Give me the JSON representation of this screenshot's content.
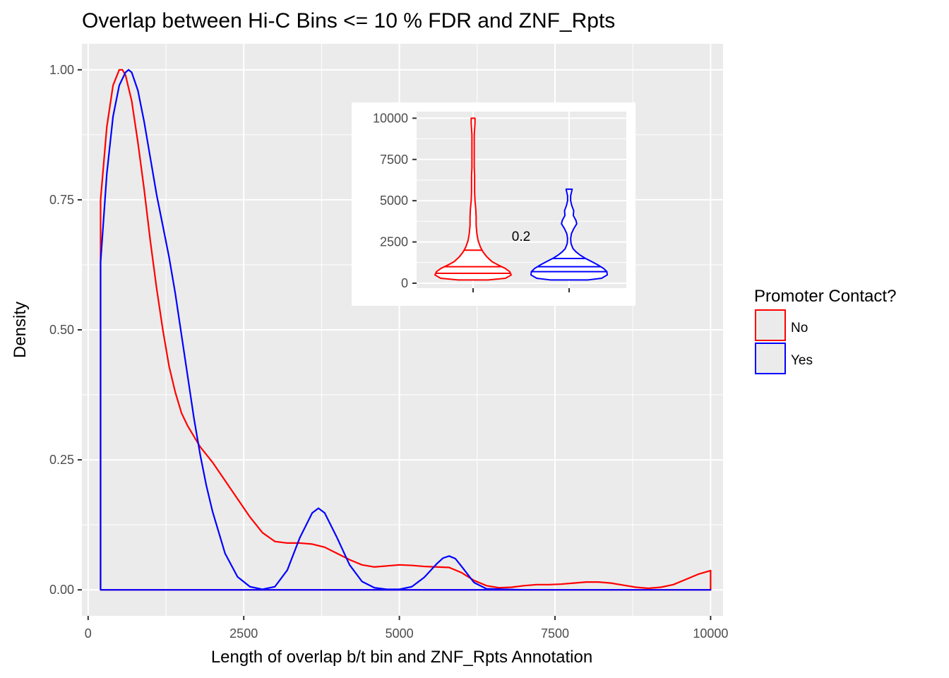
{
  "colors": {
    "No": "#ff0000",
    "Yes": "#0000ff",
    "panel": "#ebebeb",
    "grid": "#ffffff"
  },
  "chart_data": [
    {
      "type": "line",
      "title": "Overlap between Hi-C Bins <= 10 % FDR and ZNF_Rpts",
      "xlabel": "Length of overlap b/t bin and ZNF_Rpts Annotation",
      "ylabel": "Density",
      "xlim": [
        -100,
        10200
      ],
      "ylim": [
        -0.05,
        1.05
      ],
      "x_ticks": [
        0,
        2500,
        5000,
        7500,
        10000
      ],
      "x_tick_labels": [
        "0",
        "2500",
        "5000",
        "7500",
        "10000"
      ],
      "y_ticks": [
        0,
        0.25,
        0.5,
        0.75,
        1.0
      ],
      "y_tick_labels": [
        "0.00",
        "0.25",
        "0.50",
        "0.75",
        "1.00"
      ],
      "grid": true,
      "legend": {
        "title": "Promoter Contact?",
        "position": "right",
        "entries": [
          "No",
          "Yes"
        ]
      },
      "series": [
        {
          "name": "No",
          "color": "#ff0000",
          "x": [
            200,
            300,
            400,
            500,
            550,
            600,
            700,
            800,
            900,
            1000,
            1100,
            1200,
            1300,
            1400,
            1500,
            1600,
            1700,
            1800,
            1900,
            2000,
            2200,
            2400,
            2600,
            2800,
            3000,
            3200,
            3400,
            3600,
            3800,
            4000,
            4200,
            4400,
            4600,
            4800,
            5000,
            5200,
            5400,
            5600,
            5800,
            6000,
            6200,
            6400,
            6600,
            6800,
            7000,
            7200,
            7400,
            7600,
            7800,
            8000,
            8200,
            8400,
            8600,
            8800,
            9000,
            9200,
            9400,
            9600,
            9800,
            10000
          ],
          "y": [
            0.75,
            0.89,
            0.97,
            1.0,
            1.0,
            0.99,
            0.94,
            0.86,
            0.77,
            0.67,
            0.58,
            0.5,
            0.43,
            0.38,
            0.34,
            0.315,
            0.295,
            0.275,
            0.26,
            0.245,
            0.21,
            0.175,
            0.14,
            0.11,
            0.093,
            0.09,
            0.09,
            0.088,
            0.082,
            0.07,
            0.058,
            0.048,
            0.044,
            0.046,
            0.048,
            0.047,
            0.045,
            0.044,
            0.043,
            0.033,
            0.018,
            0.008,
            0.004,
            0.005,
            0.008,
            0.01,
            0.01,
            0.011,
            0.013,
            0.015,
            0.015,
            0.013,
            0.009,
            0.005,
            0.003,
            0.005,
            0.01,
            0.02,
            0.03,
            0.037
          ]
        },
        {
          "name": "Yes",
          "color": "#0000ff",
          "x": [
            200,
            300,
            400,
            500,
            600,
            650,
            700,
            800,
            900,
            1000,
            1100,
            1200,
            1300,
            1400,
            1500,
            1600,
            1700,
            1800,
            1900,
            2000,
            2200,
            2400,
            2600,
            2800,
            3000,
            3200,
            3400,
            3600,
            3700,
            3800,
            4000,
            4200,
            4400,
            4600,
            4800,
            5000,
            5200,
            5400,
            5600,
            5700,
            5800,
            5900,
            6000,
            6200,
            6400,
            7000,
            8000,
            9000,
            10000
          ],
          "y": [
            0.63,
            0.8,
            0.91,
            0.97,
            0.995,
            1.0,
            0.995,
            0.96,
            0.9,
            0.83,
            0.76,
            0.7,
            0.64,
            0.57,
            0.49,
            0.41,
            0.33,
            0.26,
            0.2,
            0.15,
            0.07,
            0.025,
            0.006,
            0.001,
            0.006,
            0.038,
            0.1,
            0.148,
            0.157,
            0.148,
            0.1,
            0.048,
            0.016,
            0.004,
            0.001,
            0.001,
            0.006,
            0.024,
            0.05,
            0.061,
            0.065,
            0.06,
            0.045,
            0.014,
            0.002,
            0.0,
            0.0,
            0.0,
            0.0
          ]
        }
      ]
    },
    {
      "type": "violin",
      "ylim": [
        -300,
        10400
      ],
      "y_ticks": [
        0,
        2500,
        5000,
        7500,
        10000
      ],
      "y_tick_labels": [
        "0",
        "2500",
        "5000",
        "7500",
        "10000"
      ],
      "annotation": "0.2",
      "groups": [
        {
          "name": "No",
          "color": "#ff0000",
          "quantiles": [
            600,
            1000,
            2000
          ],
          "min": 200,
          "max": 10000,
          "profile_y": [
            200,
            300,
            500,
            700,
            900,
            1100,
            1300,
            1600,
            1900,
            2200,
            2600,
            3000,
            3500,
            4000,
            4500,
            5000,
            5500,
            6000,
            6500,
            7000,
            8000,
            9000,
            9700,
            10000
          ],
          "profile_w": [
            0.4,
            0.85,
            1.0,
            0.96,
            0.84,
            0.66,
            0.5,
            0.36,
            0.26,
            0.19,
            0.13,
            0.1,
            0.08,
            0.08,
            0.07,
            0.05,
            0.04,
            0.04,
            0.04,
            0.03,
            0.03,
            0.03,
            0.05,
            0.05
          ]
        },
        {
          "name": "Yes",
          "color": "#0000ff",
          "quantiles": [
            700,
            1000,
            1500
          ],
          "min": 200,
          "max": 5700,
          "profile_y": [
            200,
            300,
            500,
            700,
            900,
            1100,
            1300,
            1500,
            1700,
            1900,
            2100,
            2400,
            2700,
            3000,
            3300,
            3600,
            3800,
            4100,
            4400,
            4700,
            5000,
            5300,
            5700
          ],
          "profile_w": [
            0.5,
            0.85,
            1.0,
            0.99,
            0.9,
            0.76,
            0.6,
            0.43,
            0.29,
            0.18,
            0.1,
            0.05,
            0.04,
            0.06,
            0.12,
            0.2,
            0.18,
            0.11,
            0.12,
            0.07,
            0.04,
            0.04,
            0.08
          ]
        }
      ]
    }
  ]
}
